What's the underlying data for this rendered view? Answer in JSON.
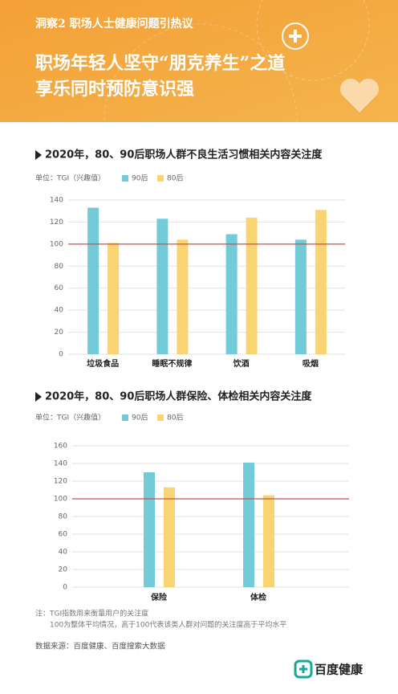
{
  "header": {
    "tag": "洞察2  职场人士健康问题引热议",
    "title_lines": [
      "职场年轻人坚守“朋克养生”之道",
      "享乐同时预防意识强"
    ]
  },
  "chart_data": [
    {
      "type": "bar",
      "title": "2020年，80、90后职场人群不良生活习惯相关内容关注度",
      "unit": "单位：TGI（兴趣值）",
      "categories": [
        "垃圾食品",
        "睡眠不规律",
        "饮酒",
        "吸烟"
      ],
      "series": [
        {
          "name": "90后",
          "color": "#72cbd7",
          "values": [
            133,
            123,
            109,
            104
          ]
        },
        {
          "name": "80后",
          "color": "#f8d473",
          "values": [
            101,
            104,
            124,
            131
          ]
        }
      ],
      "ylim": [
        0,
        140
      ],
      "yticks": [
        0,
        20,
        40,
        60,
        80,
        100,
        120,
        140
      ],
      "grid": true,
      "reference_line": 100,
      "reference_color": "#c9504a"
    },
    {
      "type": "bar",
      "title": "2020年，80、90后职场人群保险、体检相关内容关注度",
      "unit": "单位：TGI（兴趣值）",
      "categories": [
        "保险",
        "体检"
      ],
      "series": [
        {
          "name": "90后",
          "color": "#72cbd7",
          "values": [
            130,
            141
          ]
        },
        {
          "name": "80后",
          "color": "#f8d473",
          "values": [
            113,
            104
          ]
        }
      ],
      "ylim": [
        0,
        160
      ],
      "yticks": [
        0,
        20,
        40,
        60,
        80,
        100,
        120,
        140,
        160
      ],
      "grid": true,
      "reference_line": 100,
      "reference_color": "#c9504a"
    }
  ],
  "notes": [
    "注：TGI指数用来衡量用户的关注度",
    "100为整体平均情况，高于100代表该类人群对问题的关注度高于平均水平"
  ],
  "source": "数据来源：百度健康、百度搜索大数据",
  "logo": "百度健康"
}
